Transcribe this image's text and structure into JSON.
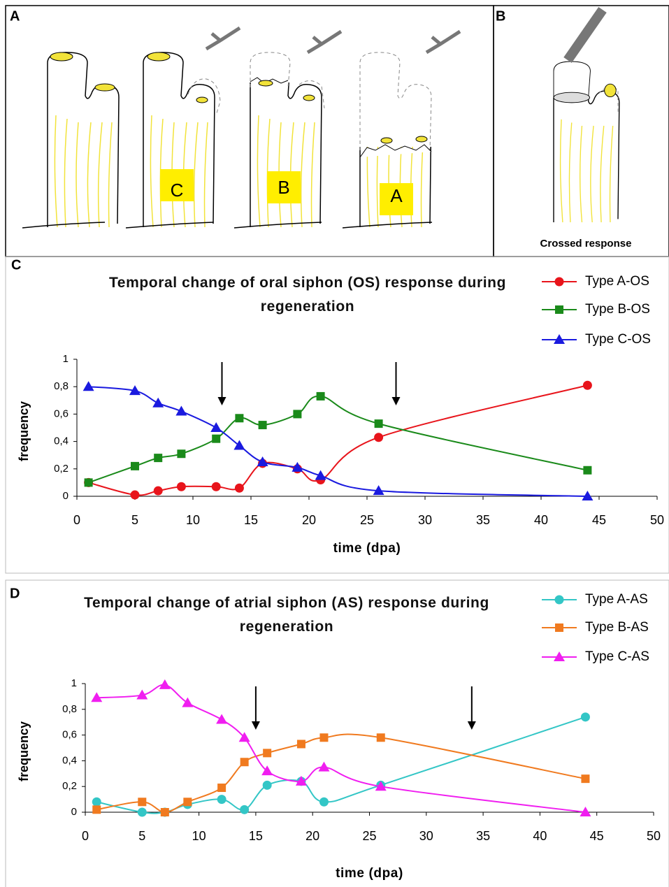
{
  "figure": {
    "panel_labels": [
      "A",
      "B",
      "C",
      "D"
    ],
    "stage_labels": [
      "C",
      "B",
      "A"
    ],
    "crossed_response": "Crossed response"
  },
  "chart_data": [
    {
      "type": "line",
      "title": "Temporal change of oral siphon (OS) response during regeneration",
      "x_label": "time (dpa)",
      "y_label": "frequency",
      "x": [
        1,
        5,
        7,
        9,
        12,
        14,
        16,
        19,
        21,
        26,
        44
      ],
      "series": [
        {
          "name": "Type A-OS",
          "color": "#e8141b",
          "marker": "circle",
          "values": [
            0.1,
            0.01,
            0.04,
            0.07,
            0.07,
            0.06,
            0.24,
            0.2,
            0.12,
            0.43,
            0.81
          ]
        },
        {
          "name": "Type B-OS",
          "color": "#1a8a1a",
          "marker": "square",
          "values": [
            0.1,
            0.22,
            0.28,
            0.31,
            0.42,
            0.57,
            0.52,
            0.6,
            0.73,
            0.53,
            0.19
          ]
        },
        {
          "name": "Type C-OS",
          "color": "#1a1adf",
          "marker": "triangle",
          "values": [
            0.8,
            0.77,
            0.68,
            0.62,
            0.5,
            0.37,
            0.25,
            0.21,
            0.15,
            0.04,
            0.0
          ]
        }
      ],
      "arrows": [
        12.5,
        27.5
      ],
      "xlim": [
        0,
        50
      ],
      "xticks": [
        0,
        5,
        10,
        15,
        20,
        25,
        30,
        35,
        40,
        45,
        50
      ],
      "ylim": [
        0,
        1
      ],
      "yticks": [
        0,
        {
          "value": 0.2,
          "label": "0,2"
        },
        {
          "value": 0.4,
          "label": "0,4"
        },
        {
          "value": 0.6,
          "label": "0,6"
        },
        {
          "value": 0.8,
          "label": "0,8"
        },
        1
      ],
      "grid": false,
      "legend": "top-right"
    },
    {
      "type": "line",
      "title": "Temporal change of atrial siphon (AS) response during regeneration",
      "x_label": "time (dpa)",
      "y_label": "frequency",
      "x": [
        1,
        5,
        7,
        9,
        12,
        14,
        16,
        19,
        21,
        26,
        44
      ],
      "series": [
        {
          "name": "Type A-AS",
          "color": "#33c6c6",
          "marker": "circle",
          "values": [
            0.08,
            0.0,
            0.0,
            0.06,
            0.1,
            0.02,
            0.21,
            0.24,
            0.08,
            0.21,
            0.74
          ]
        },
        {
          "name": "Type B-AS",
          "color": "#f07a1f",
          "marker": "square",
          "values": [
            0.02,
            0.08,
            0.0,
            0.08,
            0.19,
            0.39,
            0.46,
            0.53,
            0.58,
            0.58,
            0.26
          ]
        },
        {
          "name": "Type C-AS",
          "color": "#f01ef0",
          "marker": "triangle",
          "values": [
            0.89,
            0.91,
            0.99,
            0.85,
            0.72,
            0.58,
            0.32,
            0.24,
            0.35,
            0.2,
            0.0
          ]
        }
      ],
      "arrows": [
        15,
        34
      ],
      "xlim": [
        0,
        50
      ],
      "xticks": [
        0,
        5,
        10,
        15,
        20,
        25,
        30,
        35,
        40,
        45,
        50
      ],
      "ylim": [
        0,
        1
      ],
      "yticks": [
        0,
        {
          "value": 0.2,
          "label": "0,2"
        },
        {
          "value": 0.4,
          "label": "0,4"
        },
        {
          "value": 0.6,
          "label": "0,6"
        },
        {
          "value": 0.8,
          "label": "0,8"
        },
        1
      ],
      "grid": false,
      "legend": "top-right"
    }
  ]
}
